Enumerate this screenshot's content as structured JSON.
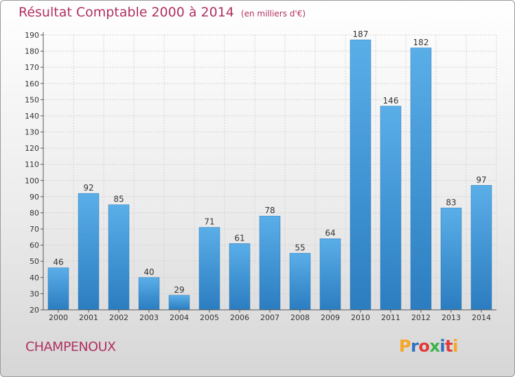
{
  "chart_data": {
    "type": "bar",
    "title": "Résultat Comptable 2000 à 2014",
    "subtitle": "(en milliers d'€)",
    "xlabel": "",
    "ylabel": "",
    "categories": [
      "2000",
      "2001",
      "2002",
      "2003",
      "2004",
      "2005",
      "2006",
      "2007",
      "2008",
      "2009",
      "2010",
      "2011",
      "2012",
      "2013",
      "2014"
    ],
    "values": [
      46,
      92,
      85,
      40,
      29,
      71,
      61,
      78,
      55,
      64,
      187,
      146,
      182,
      83,
      97
    ],
    "ylim": [
      20,
      190
    ],
    "yticks": [
      20,
      30,
      40,
      50,
      60,
      70,
      80,
      90,
      100,
      110,
      120,
      130,
      140,
      150,
      160,
      170,
      180,
      190
    ],
    "grid": true,
    "bar_color_light": "#5aaee8",
    "bar_color_dark": "#2b7dc0"
  },
  "footer": {
    "commune": "CHAMPENOUX",
    "logo_text": "Proxiti"
  },
  "colors": {
    "title": "#b03060",
    "logo_letters": [
      "#f5a623",
      "#2f6fbf",
      "#e23a3a",
      "#3db34a",
      "#2f6fbf",
      "#e23a3a",
      "#f5a623"
    ]
  }
}
